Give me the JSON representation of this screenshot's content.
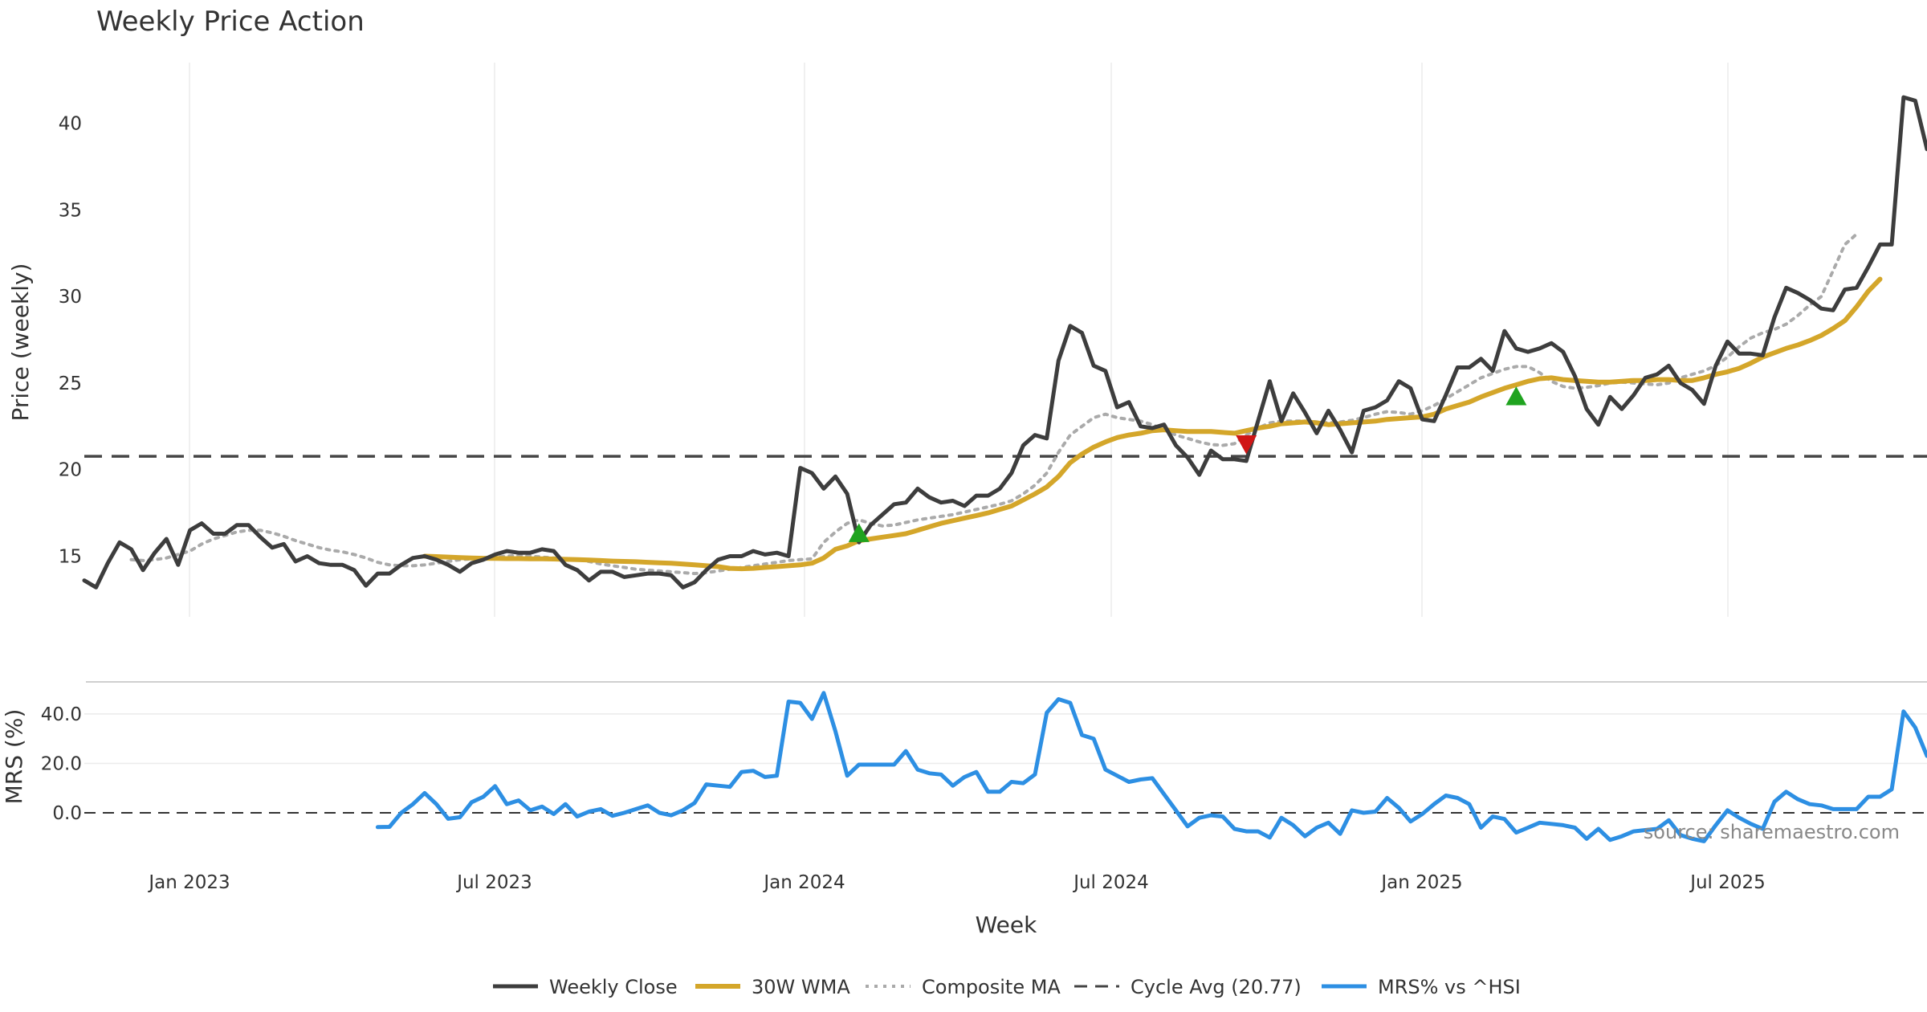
{
  "chart_data": {
    "title": "Weekly Price Action",
    "xlabel": "Week",
    "source": "source: sharemaestro.com",
    "x_tick_labels": [
      "Jan 2023",
      "Jul 2023",
      "Jan 2024",
      "Jul 2024",
      "Jan 2025",
      "Jul 2025"
    ],
    "colors": {
      "close": "#3d3d3d",
      "wma": "#d4a62a",
      "composite": "#aaaaaa",
      "cycle": "#444444",
      "mrs": "#2d8fe3",
      "buy": "#1fa31f",
      "sell": "#d01515",
      "grid": "#ebebeb"
    },
    "price_panel": {
      "type": "line",
      "ylabel": "Price (weekly)",
      "ylim": [
        11.5,
        43.5
      ],
      "yticks": [
        "15",
        "20",
        "25",
        "30",
        "35",
        "40"
      ],
      "cycle_avg": 20.77,
      "series": [
        {
          "name": "Weekly Close",
          "values": [
            13.6,
            13.2,
            14.6,
            15.8,
            15.4,
            14.2,
            15.2,
            16.0,
            14.5,
            16.5,
            16.9,
            16.3,
            16.3,
            16.8,
            16.8,
            16.1,
            15.5,
            15.7,
            14.7,
            15.0,
            14.6,
            14.5,
            14.5,
            14.2,
            13.3,
            14.0,
            14.0,
            14.5,
            14.9,
            15.0,
            14.8,
            14.5,
            14.1,
            14.6,
            14.8,
            15.1,
            15.3,
            15.2,
            15.2,
            15.4,
            15.3,
            14.5,
            14.2,
            13.6,
            14.1,
            14.1,
            13.8,
            13.9,
            14.0,
            14.0,
            13.9,
            13.2,
            13.5,
            14.2,
            14.8,
            15.0,
            15.0,
            15.3,
            15.1,
            15.2,
            15.0,
            20.1,
            19.8,
            18.9,
            19.6,
            18.6,
            15.8,
            16.8,
            17.4,
            18.0,
            18.1,
            18.9,
            18.4,
            18.1,
            18.2,
            17.9,
            18.5,
            18.5,
            18.9,
            19.8,
            21.4,
            22.0,
            21.8,
            26.3,
            28.3,
            27.9,
            26.0,
            25.7,
            23.6,
            23.9,
            22.5,
            22.4,
            22.6,
            21.4,
            20.7,
            19.7,
            21.1,
            20.6,
            20.6,
            20.5,
            22.8,
            25.1,
            22.8,
            24.4,
            23.3,
            22.1,
            23.4,
            22.3,
            21.0,
            23.4,
            23.6,
            24.0,
            25.1,
            24.7,
            22.9,
            22.8,
            24.3,
            25.9,
            25.9,
            26.4,
            25.7,
            28.0,
            27.0,
            26.8,
            27.0,
            27.3,
            26.8,
            25.4,
            23.5,
            22.6,
            24.2,
            23.5,
            24.3,
            25.3,
            25.5,
            26.0,
            25.0,
            24.6,
            23.8,
            26.0,
            27.4,
            26.7,
            26.7,
            26.6,
            28.8,
            30.5,
            30.2,
            29.8,
            29.3,
            29.2,
            30.4,
            30.5,
            31.7,
            33.0,
            33.0,
            41.5,
            41.3,
            38.5
          ]
        },
        {
          "name": "30W WMA",
          "start": 29,
          "values": [
            15.0,
            14.98,
            14.95,
            14.92,
            14.9,
            14.88,
            14.87,
            14.86,
            14.86,
            14.85,
            14.85,
            14.84,
            14.82,
            14.8,
            14.78,
            14.75,
            14.72,
            14.7,
            14.68,
            14.65,
            14.62,
            14.6,
            14.55,
            14.5,
            14.45,
            14.4,
            14.3,
            14.28,
            14.3,
            14.35,
            14.4,
            14.45,
            14.5,
            14.6,
            14.9,
            15.4,
            15.6,
            15.9,
            16.0,
            16.1,
            16.2,
            16.3,
            16.5,
            16.7,
            16.9,
            17.05,
            17.2,
            17.35,
            17.5,
            17.7,
            17.9,
            18.25,
            18.6,
            19.0,
            19.6,
            20.4,
            20.9,
            21.3,
            21.6,
            21.85,
            22.0,
            22.1,
            22.25,
            22.3,
            22.25,
            22.2,
            22.2,
            22.2,
            22.15,
            22.1,
            22.25,
            22.4,
            22.5,
            22.65,
            22.7,
            22.75,
            22.7,
            22.6,
            22.65,
            22.7,
            22.75,
            22.8,
            22.9,
            22.95,
            23.0,
            23.05,
            23.2,
            23.5,
            23.7,
            23.9,
            24.2,
            24.45,
            24.7,
            24.9,
            25.1,
            25.25,
            25.3,
            25.2,
            25.15,
            25.1,
            25.05,
            25.05,
            25.1,
            25.15,
            25.15,
            25.2,
            25.2,
            25.15,
            25.15,
            25.3,
            25.5,
            25.65,
            25.85,
            26.15,
            26.5,
            26.75,
            27.0,
            27.2,
            27.45,
            27.75,
            28.15,
            28.6,
            29.4,
            30.3,
            31.0
          ]
        },
        {
          "name": "Composite MA",
          "start": 4,
          "values": [
            14.8,
            14.75,
            14.8,
            14.9,
            15.1,
            15.3,
            15.7,
            16.0,
            16.2,
            16.4,
            16.5,
            16.5,
            16.35,
            16.15,
            15.9,
            15.7,
            15.5,
            15.35,
            15.25,
            15.1,
            14.9,
            14.65,
            14.5,
            14.45,
            14.45,
            14.5,
            14.6,
            14.7,
            14.8,
            14.85,
            14.9,
            14.95,
            15.0,
            15.05,
            15.0,
            14.95,
            14.9,
            14.85,
            14.8,
            14.7,
            14.55,
            14.45,
            14.35,
            14.25,
            14.2,
            14.15,
            14.1,
            14.05,
            14.0,
            14.05,
            14.15,
            14.25,
            14.35,
            14.45,
            14.55,
            14.65,
            14.75,
            14.8,
            14.85,
            15.8,
            16.4,
            16.9,
            17.1,
            16.9,
            16.75,
            16.8,
            16.95,
            17.1,
            17.2,
            17.3,
            17.4,
            17.55,
            17.7,
            17.85,
            18.0,
            18.2,
            18.6,
            19.1,
            19.8,
            21.0,
            22.0,
            22.5,
            23.0,
            23.2,
            23.0,
            22.9,
            22.8,
            22.6,
            22.3,
            22.0,
            21.8,
            21.6,
            21.45,
            21.4,
            21.5,
            22.0,
            22.4,
            22.7,
            22.8,
            22.8,
            22.8,
            22.75,
            22.7,
            22.75,
            22.85,
            23.0,
            23.2,
            23.35,
            23.3,
            23.2,
            23.4,
            23.7,
            24.1,
            24.5,
            24.9,
            25.3,
            25.55,
            25.8,
            25.95,
            25.95,
            25.6,
            25.1,
            24.8,
            24.7,
            24.75,
            24.85,
            25.0,
            25.05,
            25.0,
            24.95,
            24.9,
            25.0,
            25.3,
            25.5,
            25.7,
            26.0,
            26.5,
            27.1,
            27.6,
            27.9,
            28.1,
            28.4,
            28.9,
            29.5,
            30.0,
            31.5,
            33.0,
            33.6
          ]
        }
      ],
      "markers": [
        {
          "type": "buy",
          "x": 66,
          "y": 16.3
        },
        {
          "type": "sell",
          "x": 99,
          "y": 21.5
        },
        {
          "type": "buy",
          "x": 122,
          "y": 24.2
        }
      ]
    },
    "mrs_panel": {
      "type": "line",
      "ylabel": "MRS (%)",
      "ylim": [
        -13,
        52
      ],
      "yticks": [
        "40.0",
        "20.0",
        "0.0"
      ],
      "series": [
        {
          "name": "MRS% vs ^HSI",
          "start": 25,
          "values": [
            -5.8,
            -5.7,
            0.0,
            3.5,
            8.0,
            3.5,
            -2.4,
            -1.8,
            4.3,
            6.5,
            10.8,
            3.5,
            5.0,
            1.0,
            2.5,
            -0.5,
            3.5,
            -1.5,
            0.5,
            1.5,
            -1.2,
            0.0,
            1.5,
            3.0,
            0.0,
            -1.0,
            1.0,
            4.0,
            11.5,
            11.0,
            10.5,
            16.5,
            17.0,
            14.5,
            15.0,
            45.0,
            44.5,
            38.0,
            48.5,
            33.0,
            15.0,
            19.5,
            19.5,
            19.5,
            19.5,
            25.0,
            17.5,
            16.0,
            15.5,
            11.0,
            14.5,
            16.5,
            8.5,
            8.5,
            12.5,
            12.0,
            15.5,
            40.5,
            46.0,
            44.5,
            31.5,
            30.0,
            17.5,
            15.0,
            12.5,
            13.5,
            14.0,
            7.5,
            1.0,
            -5.5,
            -2.0,
            -1.0,
            -1.5,
            -6.5,
            -7.5,
            -7.5,
            -10.0,
            -2.0,
            -5.0,
            -9.5,
            -6.0,
            -4.0,
            -8.5,
            1.0,
            0.0,
            0.5,
            6.0,
            2.0,
            -3.5,
            -0.5,
            3.5,
            7.0,
            6.0,
            3.5,
            -6.0,
            -1.5,
            -2.5,
            -8.0,
            -6.0,
            -4.0,
            -4.5,
            -5.0,
            -6.0,
            -10.5,
            -6.5,
            -11.0,
            -9.5,
            -7.5,
            -7.0,
            -6.5,
            -3.0,
            -9.0,
            -10.5,
            -11.5,
            -5.0,
            1.0,
            -2.0,
            -4.5,
            -6.5,
            4.5,
            8.5,
            5.5,
            3.5,
            3.0,
            1.5,
            1.5,
            1.5,
            6.5,
            6.5,
            9.5,
            41.0,
            34.5,
            23.0
          ]
        }
      ]
    },
    "legend": [
      {
        "key": "close",
        "label": "Weekly Close"
      },
      {
        "key": "wma",
        "label": "30W WMA"
      },
      {
        "key": "composite",
        "label": "Composite MA"
      },
      {
        "key": "cycle",
        "label": "Cycle Avg (20.77)"
      },
      {
        "key": "mrs",
        "label": "MRS% vs ^HSI"
      }
    ]
  }
}
